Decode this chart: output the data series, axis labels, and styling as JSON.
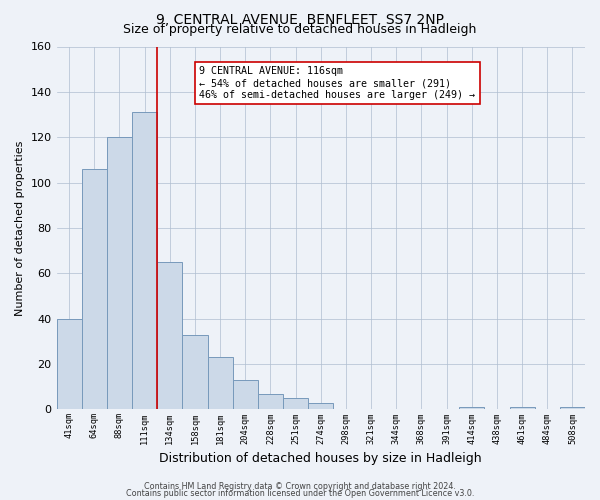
{
  "title": "9, CENTRAL AVENUE, BENFLEET, SS7 2NP",
  "subtitle": "Size of property relative to detached houses in Hadleigh",
  "xlabel": "Distribution of detached houses by size in Hadleigh",
  "ylabel": "Number of detached properties",
  "bin_labels": [
    "41sqm",
    "64sqm",
    "88sqm",
    "111sqm",
    "134sqm",
    "158sqm",
    "181sqm",
    "204sqm",
    "228sqm",
    "251sqm",
    "274sqm",
    "298sqm",
    "321sqm",
    "344sqm",
    "368sqm",
    "391sqm",
    "414sqm",
    "438sqm",
    "461sqm",
    "484sqm",
    "508sqm"
  ],
  "bar_heights": [
    40,
    106,
    120,
    131,
    65,
    33,
    23,
    13,
    7,
    5,
    3,
    0,
    0,
    0,
    0,
    0,
    1,
    0,
    1,
    0,
    1
  ],
  "bar_color": "#ccd9e8",
  "bar_edge_color": "#7799bb",
  "ylim": [
    0,
    160
  ],
  "yticks": [
    0,
    20,
    40,
    60,
    80,
    100,
    120,
    140,
    160
  ],
  "redline_x": 3.5,
  "redline_color": "#cc0000",
  "annotation_title": "9 CENTRAL AVENUE: 116sqm",
  "annotation_line1": "← 54% of detached houses are smaller (291)",
  "annotation_line2": "46% of semi-detached houses are larger (249) →",
  "annotation_box_facecolor": "#ffffff",
  "annotation_box_edgecolor": "#cc0000",
  "title_fontsize": 10,
  "subtitle_fontsize": 9,
  "ylabel_fontsize": 8,
  "xlabel_fontsize": 9,
  "background_color": "#eef2f8",
  "plot_bg_color": "#eef2f8",
  "footer1": "Contains HM Land Registry data © Crown copyright and database right 2024.",
  "footer2": "Contains public sector information licensed under the Open Government Licence v3.0."
}
